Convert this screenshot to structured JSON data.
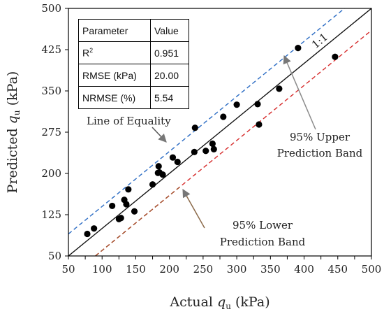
{
  "chart_data": {
    "type": "scatter",
    "xlabel_prefix": "Actual ",
    "ylabel_prefix": "Predicted ",
    "var_main": "q",
    "var_sub": "u",
    "unit_suffix": " (kPa)",
    "xlim": [
      50,
      500
    ],
    "ylim": [
      50,
      500
    ],
    "xticks": [
      "50",
      "75",
      "100",
      "125",
      "150",
      "175",
      "200",
      "225",
      "250",
      "275",
      "300",
      "325",
      "350",
      "375",
      "400",
      "425",
      "450",
      "475",
      "500"
    ],
    "yticks": [
      "50",
      "125",
      "200",
      "275",
      "350",
      "425",
      "500"
    ],
    "x_tick_labels": [
      "50",
      "100",
      "150",
      "200",
      "250",
      "300",
      "350",
      "400",
      "450",
      "500"
    ],
    "points": [
      {
        "x": 78,
        "y": 90
      },
      {
        "x": 88,
        "y": 100
      },
      {
        "x": 115,
        "y": 141
      },
      {
        "x": 125,
        "y": 117
      },
      {
        "x": 128,
        "y": 119
      },
      {
        "x": 133,
        "y": 152
      },
      {
        "x": 136,
        "y": 144
      },
      {
        "x": 139,
        "y": 171
      },
      {
        "x": 148,
        "y": 131
      },
      {
        "x": 175,
        "y": 180
      },
      {
        "x": 183,
        "y": 201
      },
      {
        "x": 184,
        "y": 213
      },
      {
        "x": 185,
        "y": 202
      },
      {
        "x": 190,
        "y": 198
      },
      {
        "x": 205,
        "y": 229
      },
      {
        "x": 212,
        "y": 221
      },
      {
        "x": 237,
        "y": 239
      },
      {
        "x": 238,
        "y": 283
      },
      {
        "x": 254,
        "y": 241
      },
      {
        "x": 264,
        "y": 254
      },
      {
        "x": 266,
        "y": 244
      },
      {
        "x": 280,
        "y": 303
      },
      {
        "x": 300,
        "y": 325
      },
      {
        "x": 331,
        "y": 326
      },
      {
        "x": 333,
        "y": 289
      },
      {
        "x": 363,
        "y": 354
      },
      {
        "x": 391,
        "y": 428
      },
      {
        "x": 446,
        "y": 412
      }
    ],
    "reference_lines": [
      {
        "name": "1:1",
        "offset": 0,
        "color": "#111111",
        "style": "solid"
      },
      {
        "name": "95% Upper Prediction Band",
        "offset": 40,
        "color": "#2b6cc4",
        "style": "dashed"
      },
      {
        "name": "95% Lower Prediction Band",
        "offset": -40,
        "color": "#d62b2b",
        "style": "dashed"
      }
    ],
    "annotations": {
      "one_to_one": "1:1",
      "equality": "Line of Equality",
      "upper_1": "95% Upper",
      "upper_2": "Prediction Band",
      "lower_1": "95% Lower",
      "lower_2": "Prediction Band"
    },
    "arrow_colors": {
      "equality": "#555555",
      "upper": "#8a8a8a",
      "lower": "#8b6a4a"
    },
    "stats_table": {
      "header_param": "Parameter",
      "header_value": "Value",
      "rows": [
        {
          "param": "R",
          "sup": "2",
          "value": "0.951"
        },
        {
          "param": "RMSE (kPa)",
          "sup": "",
          "value": "20.00"
        },
        {
          "param": "NRMSE (%)",
          "sup": "",
          "value": "5.54"
        }
      ]
    }
  }
}
